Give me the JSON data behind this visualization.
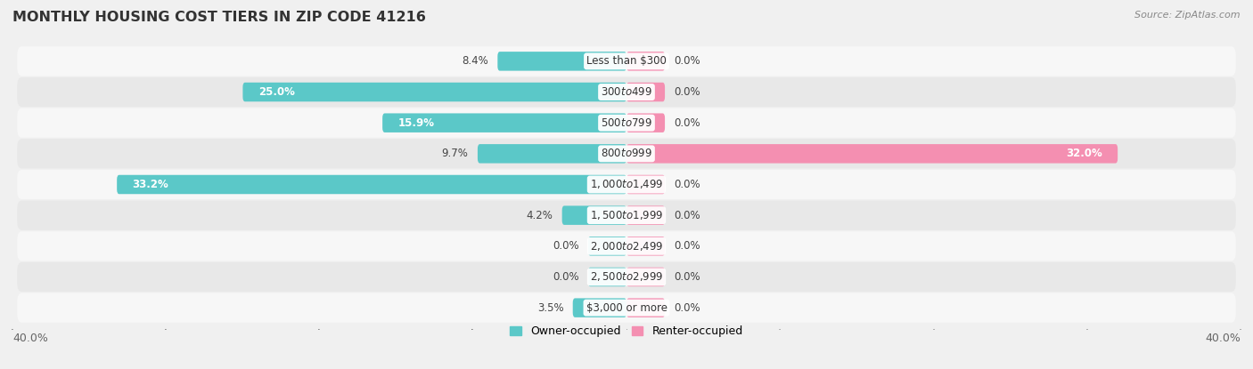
{
  "title": "MONTHLY HOUSING COST TIERS IN ZIP CODE 41216",
  "source": "Source: ZipAtlas.com",
  "categories": [
    "Less than $300",
    "$300 to $499",
    "$500 to $799",
    "$800 to $999",
    "$1,000 to $1,499",
    "$1,500 to $1,999",
    "$2,000 to $2,499",
    "$2,500 to $2,999",
    "$3,000 or more"
  ],
  "owner_values": [
    8.4,
    25.0,
    15.9,
    9.7,
    33.2,
    4.2,
    0.0,
    0.0,
    3.5
  ],
  "renter_values": [
    0.0,
    0.0,
    0.0,
    32.0,
    0.0,
    0.0,
    0.0,
    0.0,
    0.0
  ],
  "owner_color": "#5bc8c8",
  "renter_color": "#f48fb1",
  "owner_label": "Owner-occupied",
  "renter_label": "Renter-occupied",
  "xlim": 40.0,
  "bar_height": 0.62,
  "bg_color": "#f0f0f0",
  "row_bg_light": "#f7f7f7",
  "row_bg_dark": "#e8e8e8",
  "title_fontsize": 11.5,
  "value_fontsize": 8.5,
  "cat_fontsize": 8.5,
  "axis_fontsize": 9,
  "min_bar_for_small": 4.0,
  "zero_bar_width": 2.5
}
